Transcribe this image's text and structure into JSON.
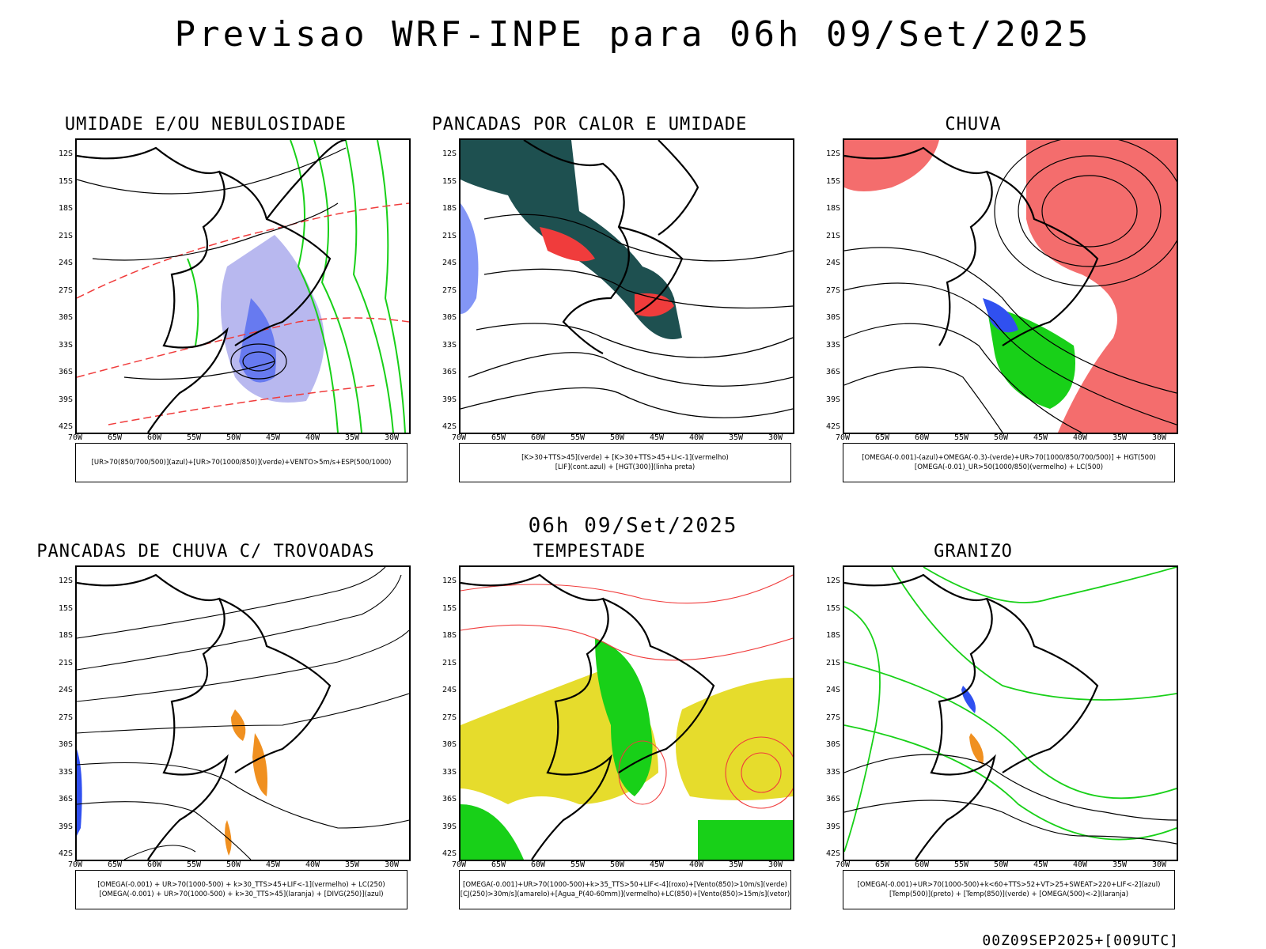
{
  "main_title": "Previsao WRF-INPE  para 06h 09/Set/2025",
  "mid_title": "06h 09/Set/2025",
  "footer": "00Z09SEP2025+[009UTC]",
  "lat_labels": [
    "12S",
    "15S",
    "18S",
    "21S",
    "24S",
    "27S",
    "30S",
    "33S",
    "36S",
    "39S",
    "42S"
  ],
  "lon_labels": [
    "70W",
    "65W",
    "60W",
    "55W",
    "50W",
    "45W",
    "40W",
    "35W",
    "30W"
  ],
  "colors": {
    "red": "#f03c3c",
    "green": "#18d018",
    "blue": "#3050f0",
    "orange": "#f09020",
    "yellow": "#e6dc2c",
    "darkteal": "#1e5050",
    "lavender": "#9a9ae8"
  },
  "panels": [
    {
      "title": "UMIDADE E/OU NEBULOSIDADE",
      "legend": [
        "[UR>70(850/700/500)](azul)+[UR>70(1000/850)](verde)+VENTO>5m/s+ESP(500/1000)"
      ]
    },
    {
      "title": "PANCADAS POR CALOR E UMIDADE",
      "legend": [
        "[K>30+TTS>45](verde)  +  [K>30+TTS>45+LI<-1](vermelho)",
        "[LIF](cont.azul)  +  [HGT(300)](linha preta)"
      ]
    },
    {
      "title": "CHUVA",
      "legend": [
        "[OMEGA(-0.001)-(azul)+OMEGA(-0.3)-(verde)+UR>70(1000/850/700/500)]  +  HGT(500)",
        "[OMEGA(-0.01)_UR>50(1000/850)(vermelho)  +  LC(500)"
      ]
    },
    {
      "title": "PANCADAS DE CHUVA C/ TROVOADAS",
      "legend": [
        "[OMEGA(-0.001)  +  UR>70(1000-500)  +  k>30_TTS>45+LIF<-1](vermelho)  +  LC(250)",
        "[OMEGA(-0.001)  +  UR>70(1000-500)  +  k>30_TTS>45](laranja)  +  [DIVG(250)](azul)"
      ]
    },
    {
      "title": "TEMPESTADE",
      "legend": [
        "[OMEGA(-0.001)+UR>70(1000-500)+k>35_TTS>50+LIF<-4](roxo)+[Vento(850)>10m/s](verde)",
        "[CJ(250)>30m/s](amarelo)+[Agua_P(40-60mm)](vermelho)+LC(850)+[Vento(850)>15m/s](vetor)"
      ]
    },
    {
      "title": "GRANIZO",
      "legend": [
        "[OMEGA(-0.001)+UR>70(1000-500)+k<60+TTS>52+VT>25+SWEAT>220+LIF<-2](azul)",
        "[Temp(500)](preto)  +  [Temp(850)](verde)  +  [OMEGA(500)<-2](laranja)"
      ]
    }
  ]
}
